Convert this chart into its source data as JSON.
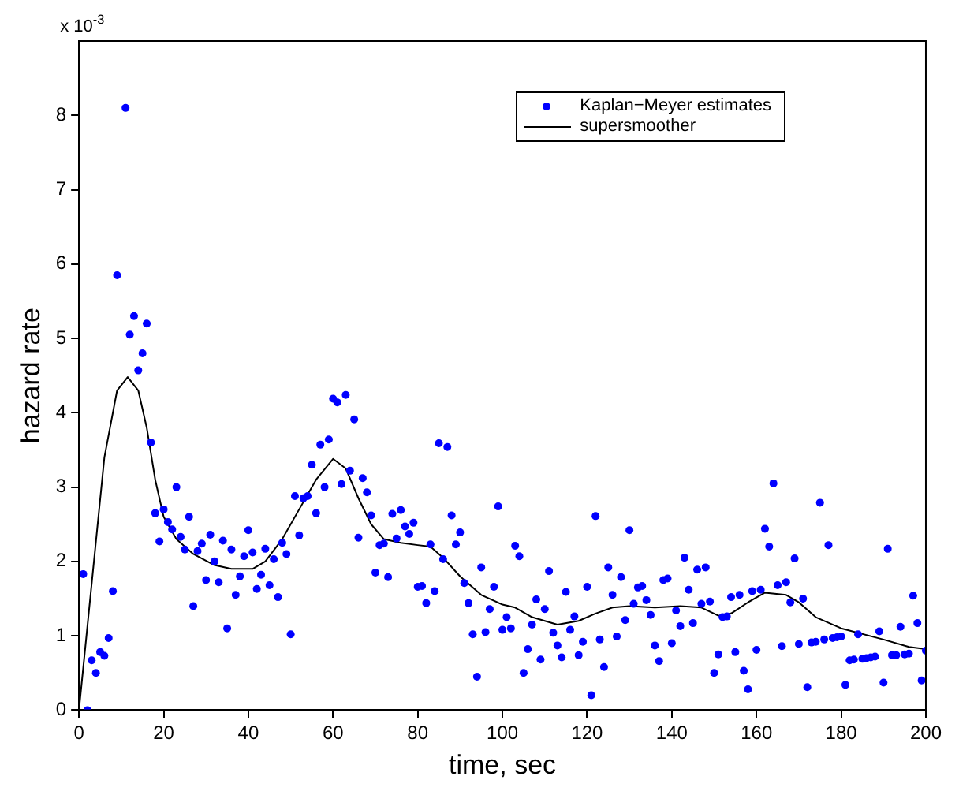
{
  "chart_data": {
    "type": "scatter",
    "xlabel": "time, sec",
    "ylabel": "hazard rate",
    "annotations": [
      "x 10$^{-3}$"
    ],
    "xlim": [
      0,
      200
    ],
    "xticks": [
      0,
      20,
      40,
      60,
      80,
      100,
      120,
      140,
      160,
      180,
      200
    ],
    "ylim": [
      0,
      9
    ],
    "yticks": [
      0,
      1,
      2,
      3,
      4,
      5,
      6,
      7,
      8
    ],
    "grid": false,
    "legend": "top right",
    "series": [
      {
        "name": "Kaplan−Meyer estimates",
        "marker": "circle",
        "color": "#0000ff",
        "x": [
          1,
          2,
          3,
          4,
          5,
          6,
          7,
          8,
          9,
          11,
          12,
          13,
          14,
          15,
          16,
          17,
          18,
          19,
          20,
          21,
          22,
          23,
          24,
          25,
          26,
          27,
          28,
          29,
          30,
          31,
          32,
          33,
          34,
          35,
          36,
          37,
          38,
          39,
          40,
          41,
          42,
          43,
          44,
          45,
          46,
          47,
          48,
          49,
          50,
          51,
          52,
          53,
          54,
          55,
          56,
          57,
          58,
          59,
          60,
          61,
          62,
          63,
          64,
          65,
          66,
          67,
          68,
          69,
          70,
          71,
          72,
          73,
          74,
          75,
          76,
          77,
          78,
          79,
          80,
          81,
          82,
          83,
          84,
          85,
          86,
          87,
          88,
          89,
          90,
          91,
          92,
          93,
          94,
          95,
          96,
          97,
          98,
          99,
          100,
          101,
          102,
          103,
          104,
          105,
          106,
          107,
          108,
          109,
          110,
          111,
          112,
          113,
          114,
          115,
          116,
          117,
          118,
          119,
          120,
          121,
          122,
          123,
          124,
          125,
          126,
          127,
          128,
          129,
          130,
          131,
          132,
          133,
          134,
          135,
          136,
          137,
          138,
          139,
          140,
          141,
          142,
          143,
          144,
          145,
          146,
          147,
          148,
          149,
          150,
          151,
          152,
          153,
          154,
          155,
          156,
          157,
          158,
          159,
          160,
          161,
          162,
          163,
          164,
          165,
          166,
          167,
          168,
          169,
          170,
          171,
          172,
          173,
          174,
          175,
          176,
          177,
          178,
          179,
          180,
          181,
          182,
          183,
          184,
          185,
          186,
          187,
          188,
          189,
          190,
          191,
          192,
          193,
          194,
          195,
          196,
          197,
          198,
          199,
          200
        ],
        "values": [
          1.83,
          0.0,
          0.67,
          0.5,
          0.78,
          0.73,
          0.97,
          1.6,
          5.85,
          8.1,
          5.05,
          5.3,
          4.57,
          4.8,
          5.2,
          3.6,
          2.65,
          2.27,
          2.7,
          2.53,
          2.43,
          3.0,
          2.33,
          2.16,
          2.6,
          1.4,
          2.14,
          2.24,
          1.75,
          2.36,
          2.0,
          1.72,
          2.28,
          1.1,
          2.16,
          1.55,
          1.8,
          2.07,
          2.42,
          2.12,
          1.63,
          1.82,
          2.17,
          1.68,
          2.03,
          1.52,
          2.25,
          2.1,
          1.02,
          2.88,
          2.35,
          2.85,
          2.88,
          3.3,
          2.65,
          3.57,
          3.0,
          3.64,
          4.19,
          4.14,
          3.04,
          4.24,
          3.22,
          3.91,
          2.32,
          3.12,
          2.93,
          2.62,
          1.85,
          2.22,
          2.24,
          1.79,
          2.64,
          2.31,
          2.69,
          2.47,
          2.37,
          2.52,
          1.66,
          1.67,
          1.44,
          2.23,
          1.6,
          3.59,
          2.03,
          3.54,
          2.62,
          2.23,
          2.39,
          1.71,
          1.44,
          1.02,
          0.45,
          1.92,
          1.05,
          1.36,
          1.66,
          2.74,
          1.08,
          1.25,
          1.1,
          2.21,
          2.07,
          0.5,
          0.82,
          1.15,
          1.49,
          0.68,
          1.36,
          1.87,
          1.04,
          0.87,
          0.71,
          1.59,
          1.08,
          1.26,
          0.74,
          0.92,
          1.66,
          0.2,
          2.61,
          0.95,
          0.58,
          1.92,
          1.55,
          0.99,
          1.79,
          1.21,
          2.42,
          1.43,
          1.65,
          1.67,
          1.48,
          1.28,
          0.87,
          0.66,
          1.75,
          1.77,
          0.9,
          1.34,
          1.13,
          2.05,
          1.62,
          1.17,
          1.89,
          1.43,
          1.92,
          1.46,
          0.5,
          0.75,
          1.25,
          1.26,
          1.52,
          0.78,
          1.55,
          0.53,
          0.28,
          1.6,
          0.81,
          1.62,
          2.44,
          2.2,
          3.05,
          1.68,
          0.86,
          1.72,
          1.45,
          2.04,
          0.89,
          1.5,
          0.31,
          0.91,
          0.92,
          2.79,
          0.95,
          2.22,
          0.97,
          0.98,
          0.99,
          0.34,
          0.67,
          0.68,
          1.02,
          0.69,
          0.7,
          0.71,
          0.72,
          1.06,
          0.37,
          2.17,
          0.74,
          0.74,
          1.12,
          0.75,
          0.76,
          1.54,
          1.17,
          0.4,
          0.8
        ]
      },
      {
        "name": "supersmoother",
        "type": "line",
        "marker": "none",
        "line_style": "solid",
        "color": "#000000",
        "x": [
          0,
          3,
          6,
          9,
          11.5,
          14,
          16,
          18,
          20,
          23,
          27,
          32,
          36,
          41,
          44,
          48,
          52,
          56,
          60,
          63,
          66,
          69,
          72,
          76,
          80,
          83,
          86,
          90,
          95,
          100,
          103,
          107,
          113,
          118,
          122,
          126,
          130,
          136,
          142,
          147,
          151,
          154,
          158,
          162,
          167,
          170,
          174,
          180,
          190,
          196,
          200
        ],
        "values": [
          0,
          1.7,
          3.4,
          4.3,
          4.48,
          4.3,
          3.8,
          3.1,
          2.6,
          2.3,
          2.1,
          1.95,
          1.9,
          1.9,
          2.0,
          2.3,
          2.7,
          3.1,
          3.38,
          3.25,
          2.85,
          2.5,
          2.3,
          2.25,
          2.22,
          2.2,
          2.05,
          1.8,
          1.55,
          1.42,
          1.38,
          1.25,
          1.15,
          1.2,
          1.3,
          1.38,
          1.4,
          1.38,
          1.4,
          1.38,
          1.27,
          1.3,
          1.45,
          1.58,
          1.55,
          1.45,
          1.25,
          1.1,
          0.95,
          0.85,
          0.82
        ]
      }
    ]
  }
}
